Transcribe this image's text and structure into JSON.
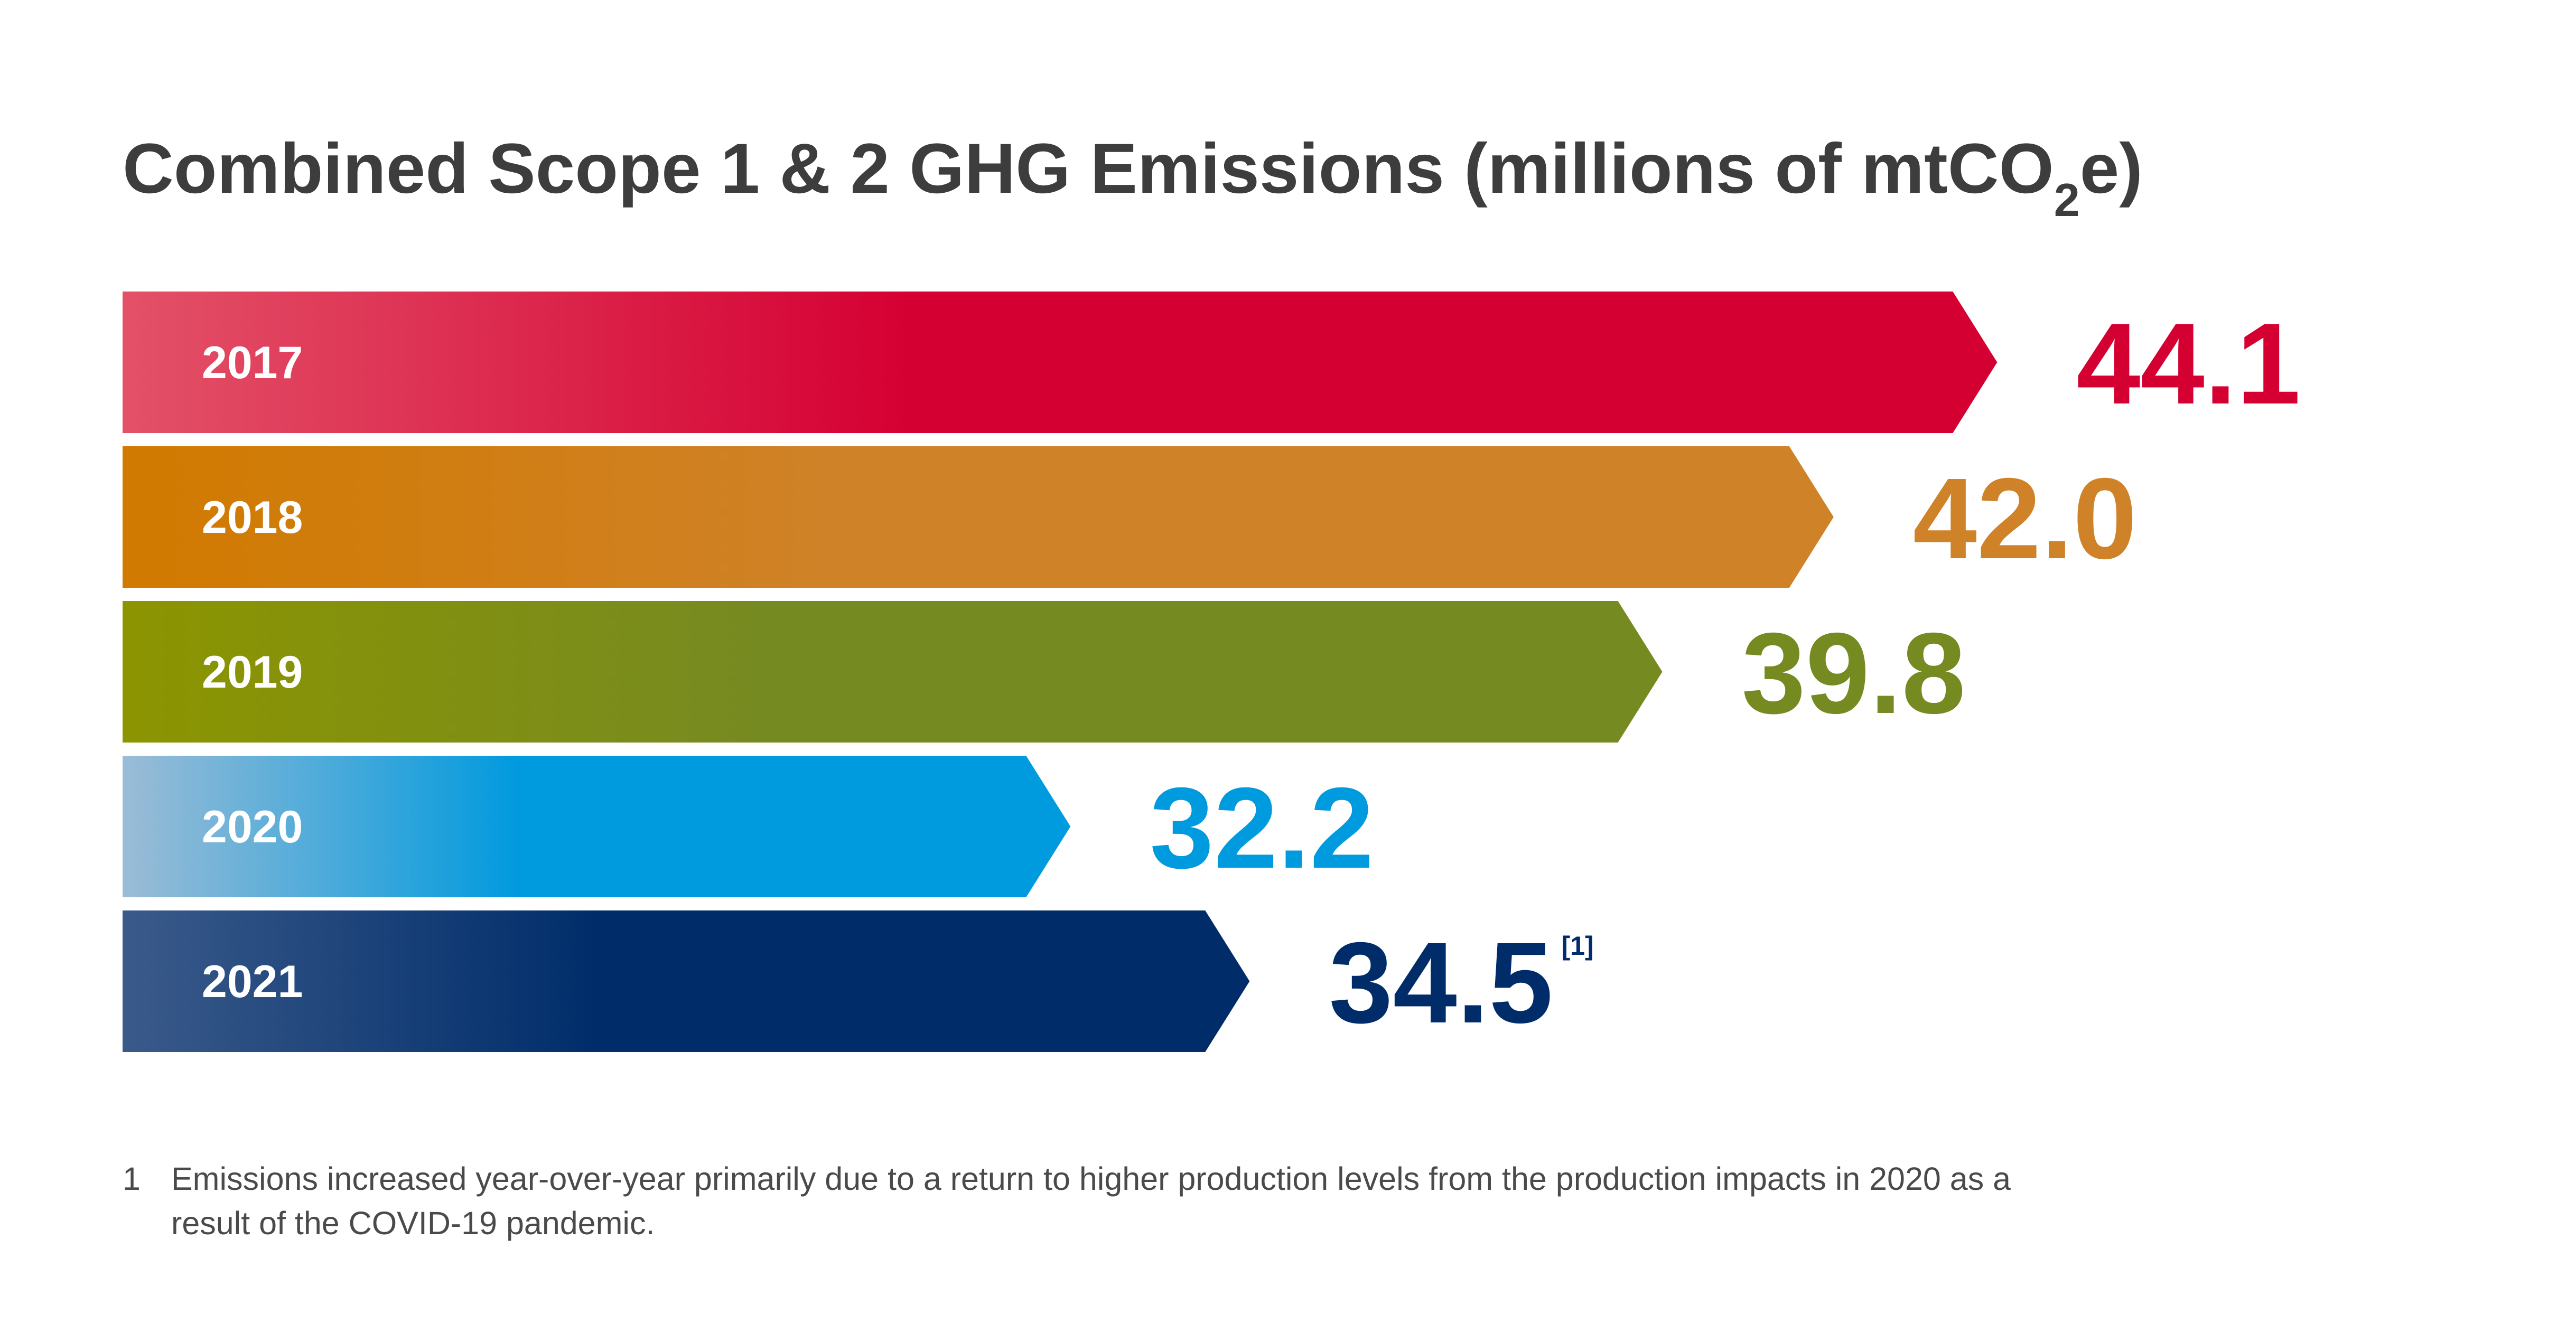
{
  "title": {
    "main": "Combined Scope 1 & 2 GHG Emissions (millions of mtCO",
    "subscript": "2",
    "suffix": "e)"
  },
  "chart_data": {
    "type": "bar",
    "orientation": "horizontal",
    "title": "Combined Scope 1 & 2 GHG Emissions (millions of mtCO2e)",
    "categories": [
      "2017",
      "2018",
      "2019",
      "2020",
      "2021"
    ],
    "values": [
      44.1,
      42.0,
      39.8,
      32.2,
      34.5
    ],
    "value_labels": [
      "44.1",
      "42.0",
      "39.8",
      "32.2",
      "34.5"
    ],
    "annotations": [
      {
        "category": "2021",
        "text": "[1]"
      }
    ],
    "colors": [
      "#d50032",
      "#cf8228",
      "#768a22",
      "#009ade",
      "#002d6a"
    ],
    "gradient_start_colors": [
      "#e35168",
      "#d17a00",
      "#8c9500",
      "#9bbcd6",
      "#3a5a8a"
    ],
    "grid": false,
    "legend": "none"
  },
  "footnote": {
    "number": "1",
    "text": "Emissions increased year-over-year primarily due to a return to higher production levels from the production impacts in 2020 as a result of the COVID-19 pandemic."
  }
}
